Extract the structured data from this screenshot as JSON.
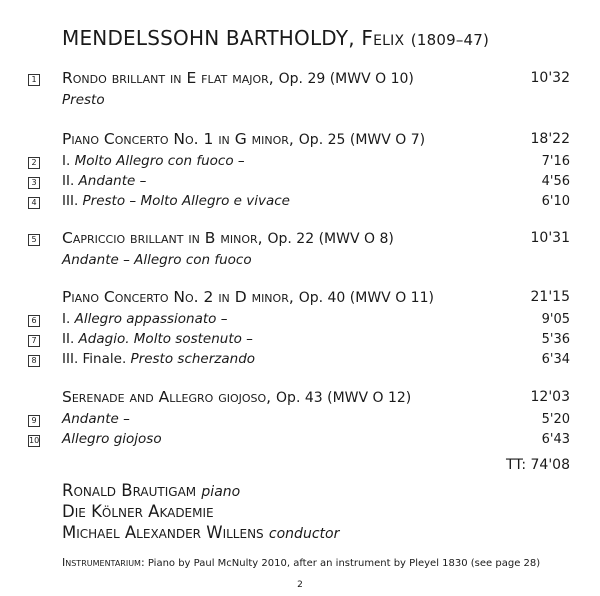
{
  "composer": {
    "name": "MENDELSSOHN BARTHOLDY,",
    "first": "Felix",
    "years": "(1809–47)"
  },
  "works": [
    {
      "title": "Rondo brillant in E flat major,",
      "opus": "Op. 29 (MWV O 10)",
      "track": "1",
      "time": "10'32",
      "movements": [
        {
          "prefix": "",
          "text": "Presto",
          "track": "",
          "time": ""
        }
      ]
    },
    {
      "title": "Piano Concerto No. 1 in G minor,",
      "opus": "Op. 25 (MWV O 7)",
      "track": "",
      "time": "18'22",
      "movements": [
        {
          "prefix": "I. ",
          "text": "Molto Allegro con fuoco –",
          "track": "2",
          "time": "7'16"
        },
        {
          "prefix": "II. ",
          "text": "Andante –",
          "track": "3",
          "time": "4'56"
        },
        {
          "prefix": "III. ",
          "text": "Presto – Molto Allegro e vivace",
          "track": "4",
          "time": "6'10"
        }
      ]
    },
    {
      "title": "Capriccio brillant in B minor,",
      "opus": "Op. 22 (MWV O 8)",
      "track": "5",
      "time": "10'31",
      "movements": [
        {
          "prefix": "",
          "text": "Andante – Allegro con fuoco",
          "track": "",
          "time": ""
        }
      ]
    },
    {
      "title": "Piano Concerto No. 2 in D minor,",
      "opus": "Op. 40 (MWV O 11)",
      "track": "",
      "time": "21'15",
      "movements": [
        {
          "prefix": "I. ",
          "text": "Allegro appassionato –",
          "track": "6",
          "time": "9'05"
        },
        {
          "prefix": "II. ",
          "text": "Adagio. Molto sostenuto –",
          "track": "7",
          "time": "5'36"
        },
        {
          "prefix": "III. Finale. ",
          "text": "Presto scherzando",
          "track": "8",
          "time": "6'34"
        }
      ]
    },
    {
      "title": "Serenade and Allegro giojoso,",
      "opus": "Op. 43 (MWV O 12)",
      "track": "",
      "time": "12'03",
      "movements": [
        {
          "prefix": "",
          "text": "Andante –",
          "track": "9",
          "time": "5'20"
        },
        {
          "prefix": "",
          "text": "Allegro giojoso",
          "track": "10",
          "time": "6'43"
        }
      ]
    }
  ],
  "total_time": "TT: 74'08",
  "performers": [
    {
      "name": "Ronald Brautigam",
      "role": "piano"
    },
    {
      "name": "Die Kölner Akademie",
      "role": ""
    },
    {
      "name": "Michael Alexander Willens",
      "role": "conductor"
    }
  ],
  "instrumentarium": {
    "label": "Instrumentarium:",
    "text": "Piano by Paul McNulty 2010, after an instrument by Pleyel 1830 (see page 28)"
  },
  "page_number": "2"
}
